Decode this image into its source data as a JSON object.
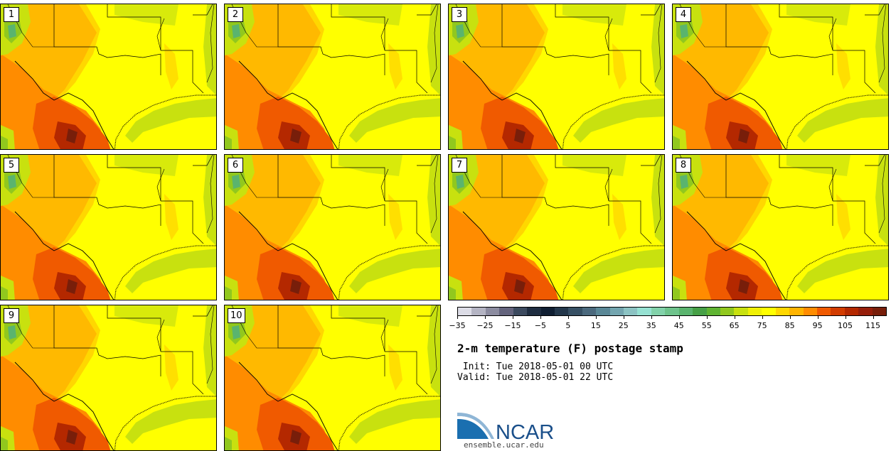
{
  "panels": [
    "1",
    "2",
    "3",
    "4",
    "5",
    "6",
    "7",
    "8",
    "9",
    "10"
  ],
  "colorbar": {
    "colors": [
      "#dcdce6",
      "#b4b4c3",
      "#8c8ca0",
      "#64647d",
      "#3c4a5f",
      "#1e2d41",
      "#0f1e32",
      "#23374b",
      "#375064",
      "#4b697d",
      "#5a8796",
      "#73a5af",
      "#8cc3c3",
      "#96e1d2",
      "#82d2aa",
      "#6ec38c",
      "#5ab46e",
      "#46a046",
      "#5fb432",
      "#91c81e",
      "#c8e10f",
      "#f0f005",
      "#ffff00",
      "#ffd700",
      "#ffb400",
      "#ff8c00",
      "#f05a00",
      "#d23c00",
      "#b42800",
      "#961e0a",
      "#781e0a"
    ],
    "ticks": [
      {
        "value": -35,
        "label": "−35"
      },
      {
        "value": -25,
        "label": "−25"
      },
      {
        "value": -15,
        "label": "−15"
      },
      {
        "value": -5,
        "label": "−5"
      },
      {
        "value": 5,
        "label": "5"
      },
      {
        "value": 15,
        "label": "15"
      },
      {
        "value": 25,
        "label": "25"
      },
      {
        "value": 35,
        "label": "35"
      },
      {
        "value": 45,
        "label": "45"
      },
      {
        "value": 55,
        "label": "55"
      },
      {
        "value": 65,
        "label": "65"
      },
      {
        "value": 75,
        "label": "75"
      },
      {
        "value": 85,
        "label": "85"
      },
      {
        "value": 95,
        "label": "95"
      },
      {
        "value": 105,
        "label": "105"
      },
      {
        "value": 115,
        "label": "115"
      }
    ],
    "min": -35,
    "max": 120
  },
  "title": "2-m temperature (F) postage stamp",
  "init_line": " Init: Tue 2018-05-01 00 UTC",
  "valid_line": "Valid: Tue 2018-05-01 22 UTC",
  "logo_text": "NCAR",
  "url": "ensemble.ucar.edu"
}
